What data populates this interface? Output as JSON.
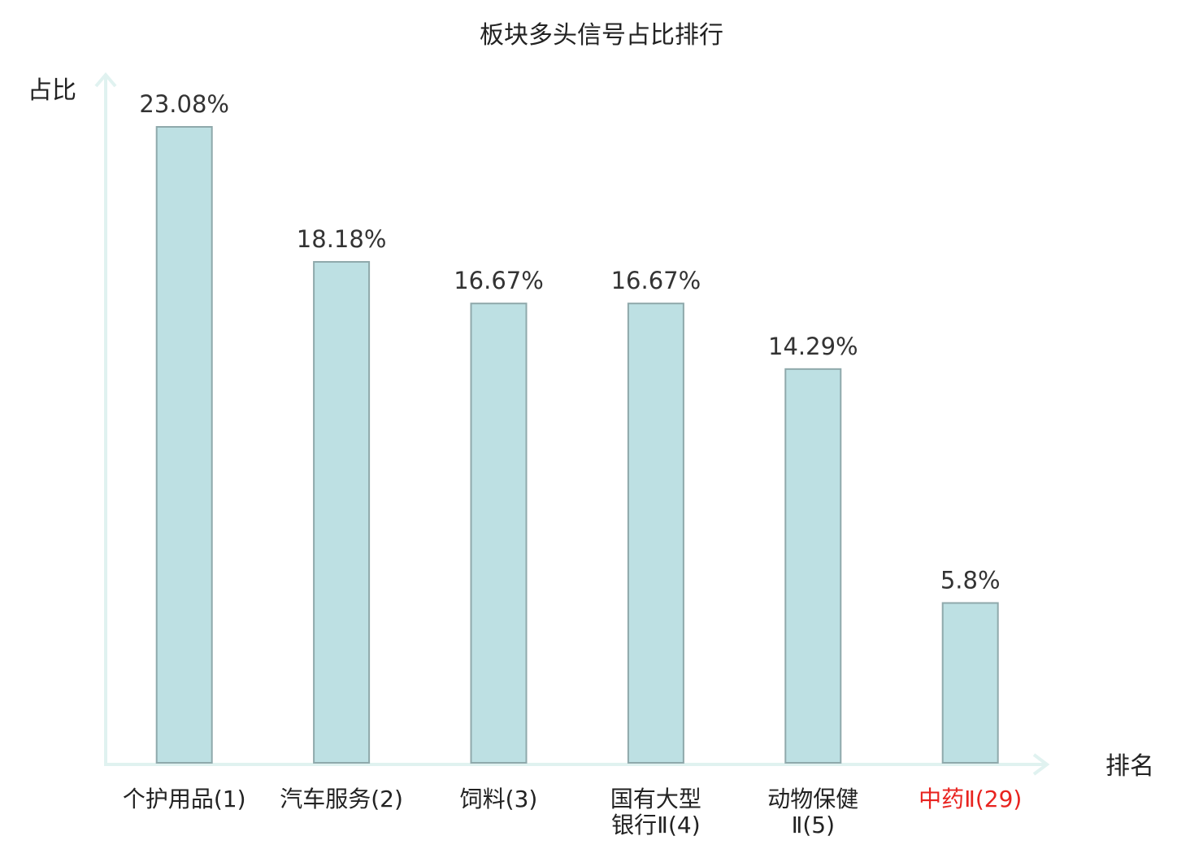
{
  "chart_data": {
    "type": "bar",
    "title": "板块多头信号占比排行",
    "ylabel": "占比",
    "xlabel": "排名",
    "ylim": [
      0,
      25
    ],
    "grid": false,
    "categories": [
      {
        "name_lines": [
          "个护用品",
          "(1)"
        ],
        "value": 23.08,
        "label": "23.08%",
        "highlight": false
      },
      {
        "name_lines": [
          "汽车服务",
          "(2)"
        ],
        "value": 18.18,
        "label": "18.18%",
        "highlight": false
      },
      {
        "name_lines": [
          "饲料",
          "(3)"
        ],
        "value": 16.67,
        "label": "16.67%",
        "highlight": false
      },
      {
        "name_lines": [
          "国有大型",
          "银行Ⅱ(4)"
        ],
        "value": 16.67,
        "label": "16.67%",
        "highlight": false
      },
      {
        "name_lines": [
          "动物保健",
          "Ⅱ(5)"
        ],
        "value": 14.29,
        "label": "14.29%",
        "highlight": false
      },
      {
        "name_lines": [
          "中药Ⅱ",
          "(29)"
        ],
        "value": 5.8,
        "label": "5.8%",
        "highlight": true
      }
    ],
    "colors": {
      "bar_fill": "#bde0e3",
      "bar_stroke": "#8fa9ab",
      "axis": "#e0f2f0",
      "text": "#222222",
      "highlight_text": "#e8231f"
    }
  }
}
